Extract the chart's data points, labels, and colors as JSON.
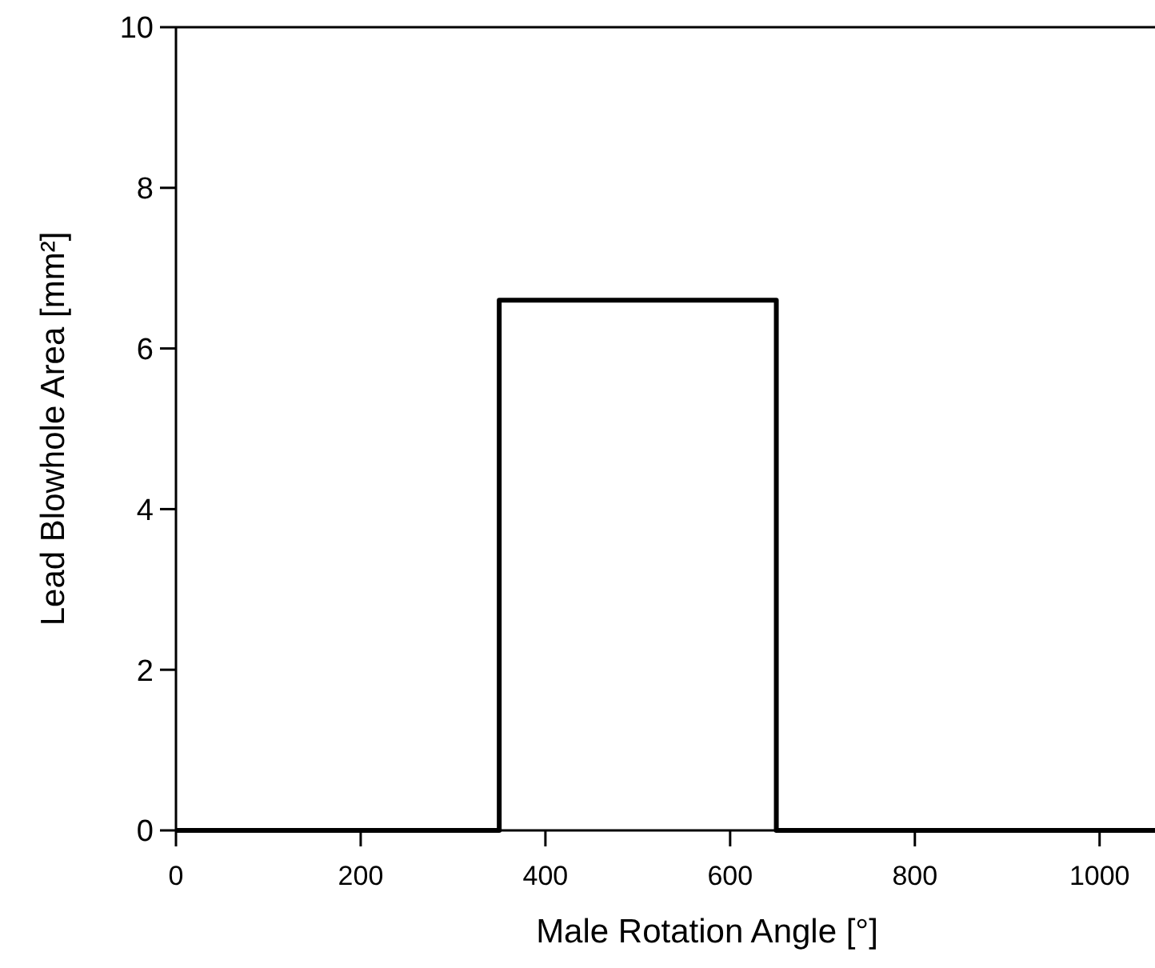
{
  "chart_data": {
    "type": "step",
    "xlabel": "Male Rotation Angle [°]",
    "ylabel": "Lead Blowhole Area [mm²]",
    "x": [
      0,
      350,
      650,
      1060
    ],
    "series": [
      {
        "color": "#000000",
        "values": [
          0,
          6.6,
          0,
          0
        ]
      }
    ],
    "xlim": [
      0,
      1060
    ],
    "ylim": [
      0,
      10
    ],
    "xticks": [
      0,
      200,
      400,
      600,
      800,
      1000
    ],
    "yticks": [
      0,
      2,
      4,
      6,
      8,
      10
    ],
    "grid": false,
    "marker": "none",
    "line_style": "solid"
  }
}
